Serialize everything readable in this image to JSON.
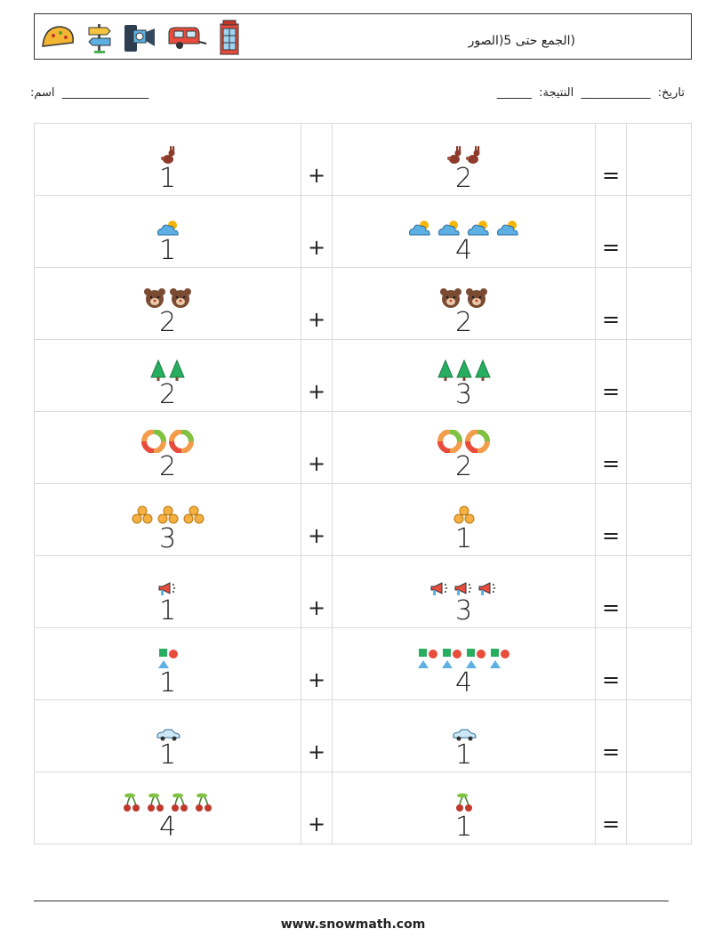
{
  "header": {
    "title": "(الجمع حتى 5(الصور",
    "icons": [
      "taco-icon",
      "signpost-icon",
      "camera-icon",
      "caravan-icon",
      "phone-booth-icon"
    ]
  },
  "info": {
    "name_line": ":اسم  _______________",
    "date_score_line": "______  :تاريخ:  ____________  النتيجة"
  },
  "problems": [
    {
      "a": 1,
      "b": 2,
      "icon": "rabbit-icon"
    },
    {
      "a": 1,
      "b": 4,
      "icon": "cloud-sun-icon"
    },
    {
      "a": 2,
      "b": 2,
      "icon": "bear-icon"
    },
    {
      "a": 2,
      "b": 3,
      "icon": "tree-icon"
    },
    {
      "a": 2,
      "b": 2,
      "icon": "ring-icon"
    },
    {
      "a": 3,
      "b": 1,
      "icon": "hay-bales-icon"
    },
    {
      "a": 1,
      "b": 3,
      "icon": "megaphone-icon"
    },
    {
      "a": 1,
      "b": 4,
      "icon": "shapes-icon"
    },
    {
      "a": 1,
      "b": 1,
      "icon": "car-icon"
    },
    {
      "a": 4,
      "b": 1,
      "icon": "cherries-icon"
    }
  ],
  "operator": "+",
  "equals": "=",
  "footer": {
    "url": "www.snowmath.com"
  }
}
